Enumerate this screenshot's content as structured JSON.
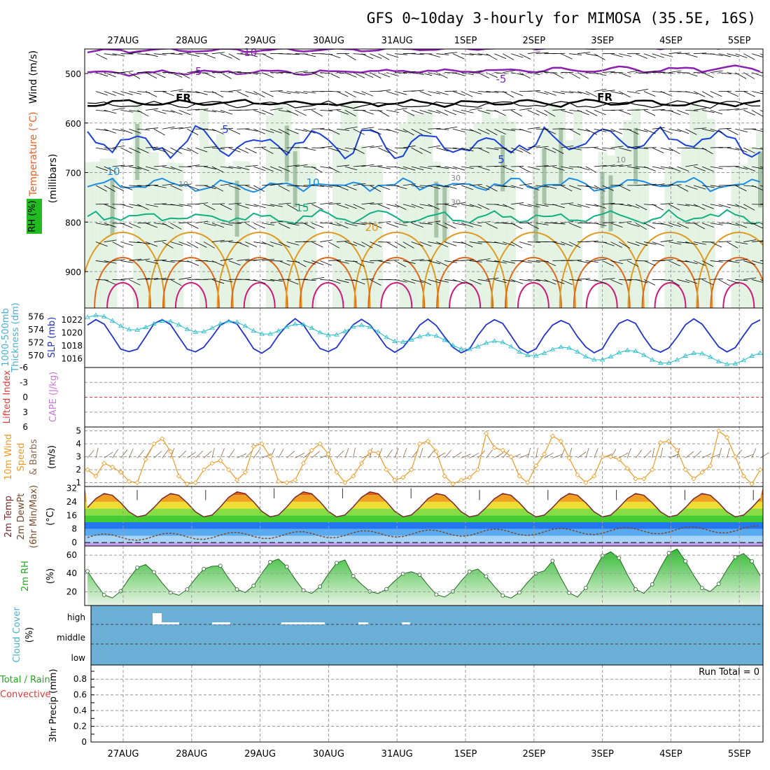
{
  "title": "GFS 0~10day 3-hourly for MIMOSA (35.5E, 16S)",
  "dates": [
    "27AUG",
    "28AUG",
    "29AUG",
    "30AUG",
    "31AUG",
    "1SEP",
    "2SEP",
    "3SEP",
    "4SEP",
    "5SEP"
  ],
  "panels": {
    "upper": {
      "labels": [
        "Wind (m/s)",
        "Temperature (°C)",
        "RH (%)",
        "(millibars)"
      ],
      "pressure_ticks": [
        "500",
        "600",
        "700",
        "800",
        "900"
      ],
      "contour_labels": [
        "-10",
        "-5",
        "-5",
        "FR",
        "FR",
        "5",
        "5",
        "10",
        "10",
        "10",
        "15",
        "20",
        "10",
        "30",
        "30"
      ]
    },
    "slp": {
      "labels": [
        "1000-500mb",
        "Thickness (dm)",
        "SLP (mb)"
      ],
      "thickness_ticks": [
        "576",
        "574",
        "572",
        "570"
      ],
      "slp_ticks": [
        "1022",
        "1020",
        "1018",
        "1016"
      ]
    },
    "cape": {
      "labels": [
        "Lifted Index",
        "CAPE (J/kg)"
      ],
      "li_ticks": [
        "-6",
        "-3",
        "0",
        "3",
        "6"
      ]
    },
    "wind10": {
      "labels": [
        "10m Wind",
        "Speed",
        "& Barbs",
        "(m/s)"
      ],
      "ticks": [
        "5",
        "4",
        "3",
        "2",
        "1"
      ]
    },
    "temp2m": {
      "labels": [
        "2m Temp",
        "2m DewPt",
        "(6hr Min/Max)",
        "(°C)"
      ],
      "ticks": [
        "32",
        "24",
        "16",
        "8",
        "0"
      ]
    },
    "rh2m": {
      "labels": [
        "2m RH",
        "(%)"
      ],
      "ticks": [
        "60",
        "40",
        "20"
      ]
    },
    "cloud": {
      "labels": [
        "Cloud Cover",
        "(%)"
      ],
      "levels": [
        "high",
        "middle",
        "low"
      ]
    },
    "precip": {
      "labels": [
        "Total / Rain",
        "Convective",
        "3hr Precip (mm)"
      ],
      "ticks": [
        "0.8",
        "0.6",
        "0.4",
        "0.2",
        "0"
      ],
      "run_total": "Run Total = 0"
    }
  },
  "chart_data": [
    {
      "type": "line",
      "name": "SLP / Thickness",
      "x_unit": "days from 26AUG 12Z",
      "series": [
        {
          "name": "SLP (mb)",
          "color": "#2233cc",
          "period_days": 1,
          "mean": 1019.5,
          "amplitude": 2.6,
          "peak_hour_utc": 9
        },
        {
          "name": "1000-500mb Thickness (dm)",
          "color": "#22bbcc",
          "values_daily": [
            575.5,
            574.5,
            574.5,
            574.0,
            574.0,
            572.5,
            571.5,
            570.5,
            570.0,
            569.5
          ],
          "trend": "slow decrease"
        }
      ],
      "ylim_slp": [
        1015,
        1023
      ],
      "ylim_thickness": [
        569,
        577
      ]
    },
    {
      "type": "line",
      "name": "Lifted Index / CAPE",
      "lifted_index_zero_line": true,
      "cape": 0,
      "ylim": [
        6,
        -6
      ]
    },
    {
      "type": "line",
      "name": "10m Wind Speed",
      "unit": "m/s",
      "color": "#ee9922",
      "values": [
        2.0,
        1.5,
        2.5,
        2.2,
        1.8,
        1.1,
        1.0,
        2.8,
        4.0,
        4.4,
        3.4,
        1.5,
        0.9,
        1.0,
        2.0,
        2.5,
        2.7,
        2.0,
        1.2,
        1.8,
        3.8,
        4.0,
        3.0,
        1.1,
        1.0,
        1.2,
        2.5,
        3.5,
        4.0,
        3.2,
        1.8,
        1.0,
        1.5,
        2.5,
        3.4,
        3.3,
        2.0,
        1.2,
        1.4,
        2.0,
        4.0,
        4.2,
        3.4,
        1.5,
        0.9,
        1.2,
        1.4,
        2.0,
        4.8,
        3.7,
        3.5,
        3.0,
        1.5,
        1.0,
        2.3,
        3.2,
        4.6,
        4.2,
        2.9,
        1.6,
        1.0,
        1.5,
        3.0,
        3.0,
        2.8,
        2.1,
        1.3,
        1.3,
        2.0,
        4.1,
        4.2,
        3.5,
        2.0,
        1.3,
        1.8,
        2.3,
        5.0,
        4.5,
        3.0,
        1.5,
        0.9,
        2.0
      ],
      "ylim": [
        0.7,
        5.3
      ]
    },
    {
      "type": "area",
      "name": "2m Temp / DewPt",
      "unit": "°C",
      "daily_max": [
        29,
        29,
        30,
        30,
        30,
        29,
        29,
        29,
        29,
        29
      ],
      "daily_min": [
        15,
        15,
        15,
        15,
        15,
        15,
        15,
        15,
        15,
        15
      ],
      "dewpoint": "about 3 to 9 °C, slowly rising",
      "ylim": [
        -2,
        33
      ],
      "band_colors": [
        "#c8a0f0",
        "#a8d4f8",
        "#5aaaf0",
        "#2277ee",
        "#44cc33",
        "#88dd44",
        "#eedd33",
        "#f0a020",
        "#e06010"
      ]
    },
    {
      "type": "area",
      "name": "2m RH",
      "unit": "%",
      "daily_max": [
        50,
        48,
        56,
        55,
        42,
        45,
        43,
        64,
        67,
        62
      ],
      "daily_min": [
        13,
        16,
        19,
        18,
        18,
        14,
        13,
        14,
        18,
        20
      ],
      "ylim": [
        5,
        70
      ]
    },
    {
      "type": "bar",
      "name": "Cloud Cover",
      "levels": [
        "high",
        "middle",
        "low"
      ],
      "note": "small high-cloud amounts only on 27AUG-31AUG"
    },
    {
      "type": "bar",
      "name": "3hr Precip",
      "unit": "mm",
      "values": [],
      "run_total": 0,
      "ylim": [
        0,
        0.98
      ]
    }
  ],
  "colors": {
    "temp_contour_cold": "#8a1fb0",
    "freezing_line": "#000000",
    "isotherm_5": "#1a40d8",
    "isotherm_10": "#1e8ce0",
    "isotherm_15": "#10b080",
    "isotherm_20": "#e09a20",
    "isotherm_25": "#e06818",
    "isotherm_30": "#d01a7a",
    "rh_shade": "#dff0df",
    "cloud_bg": "#6baed6",
    "grid": "#999999"
  }
}
